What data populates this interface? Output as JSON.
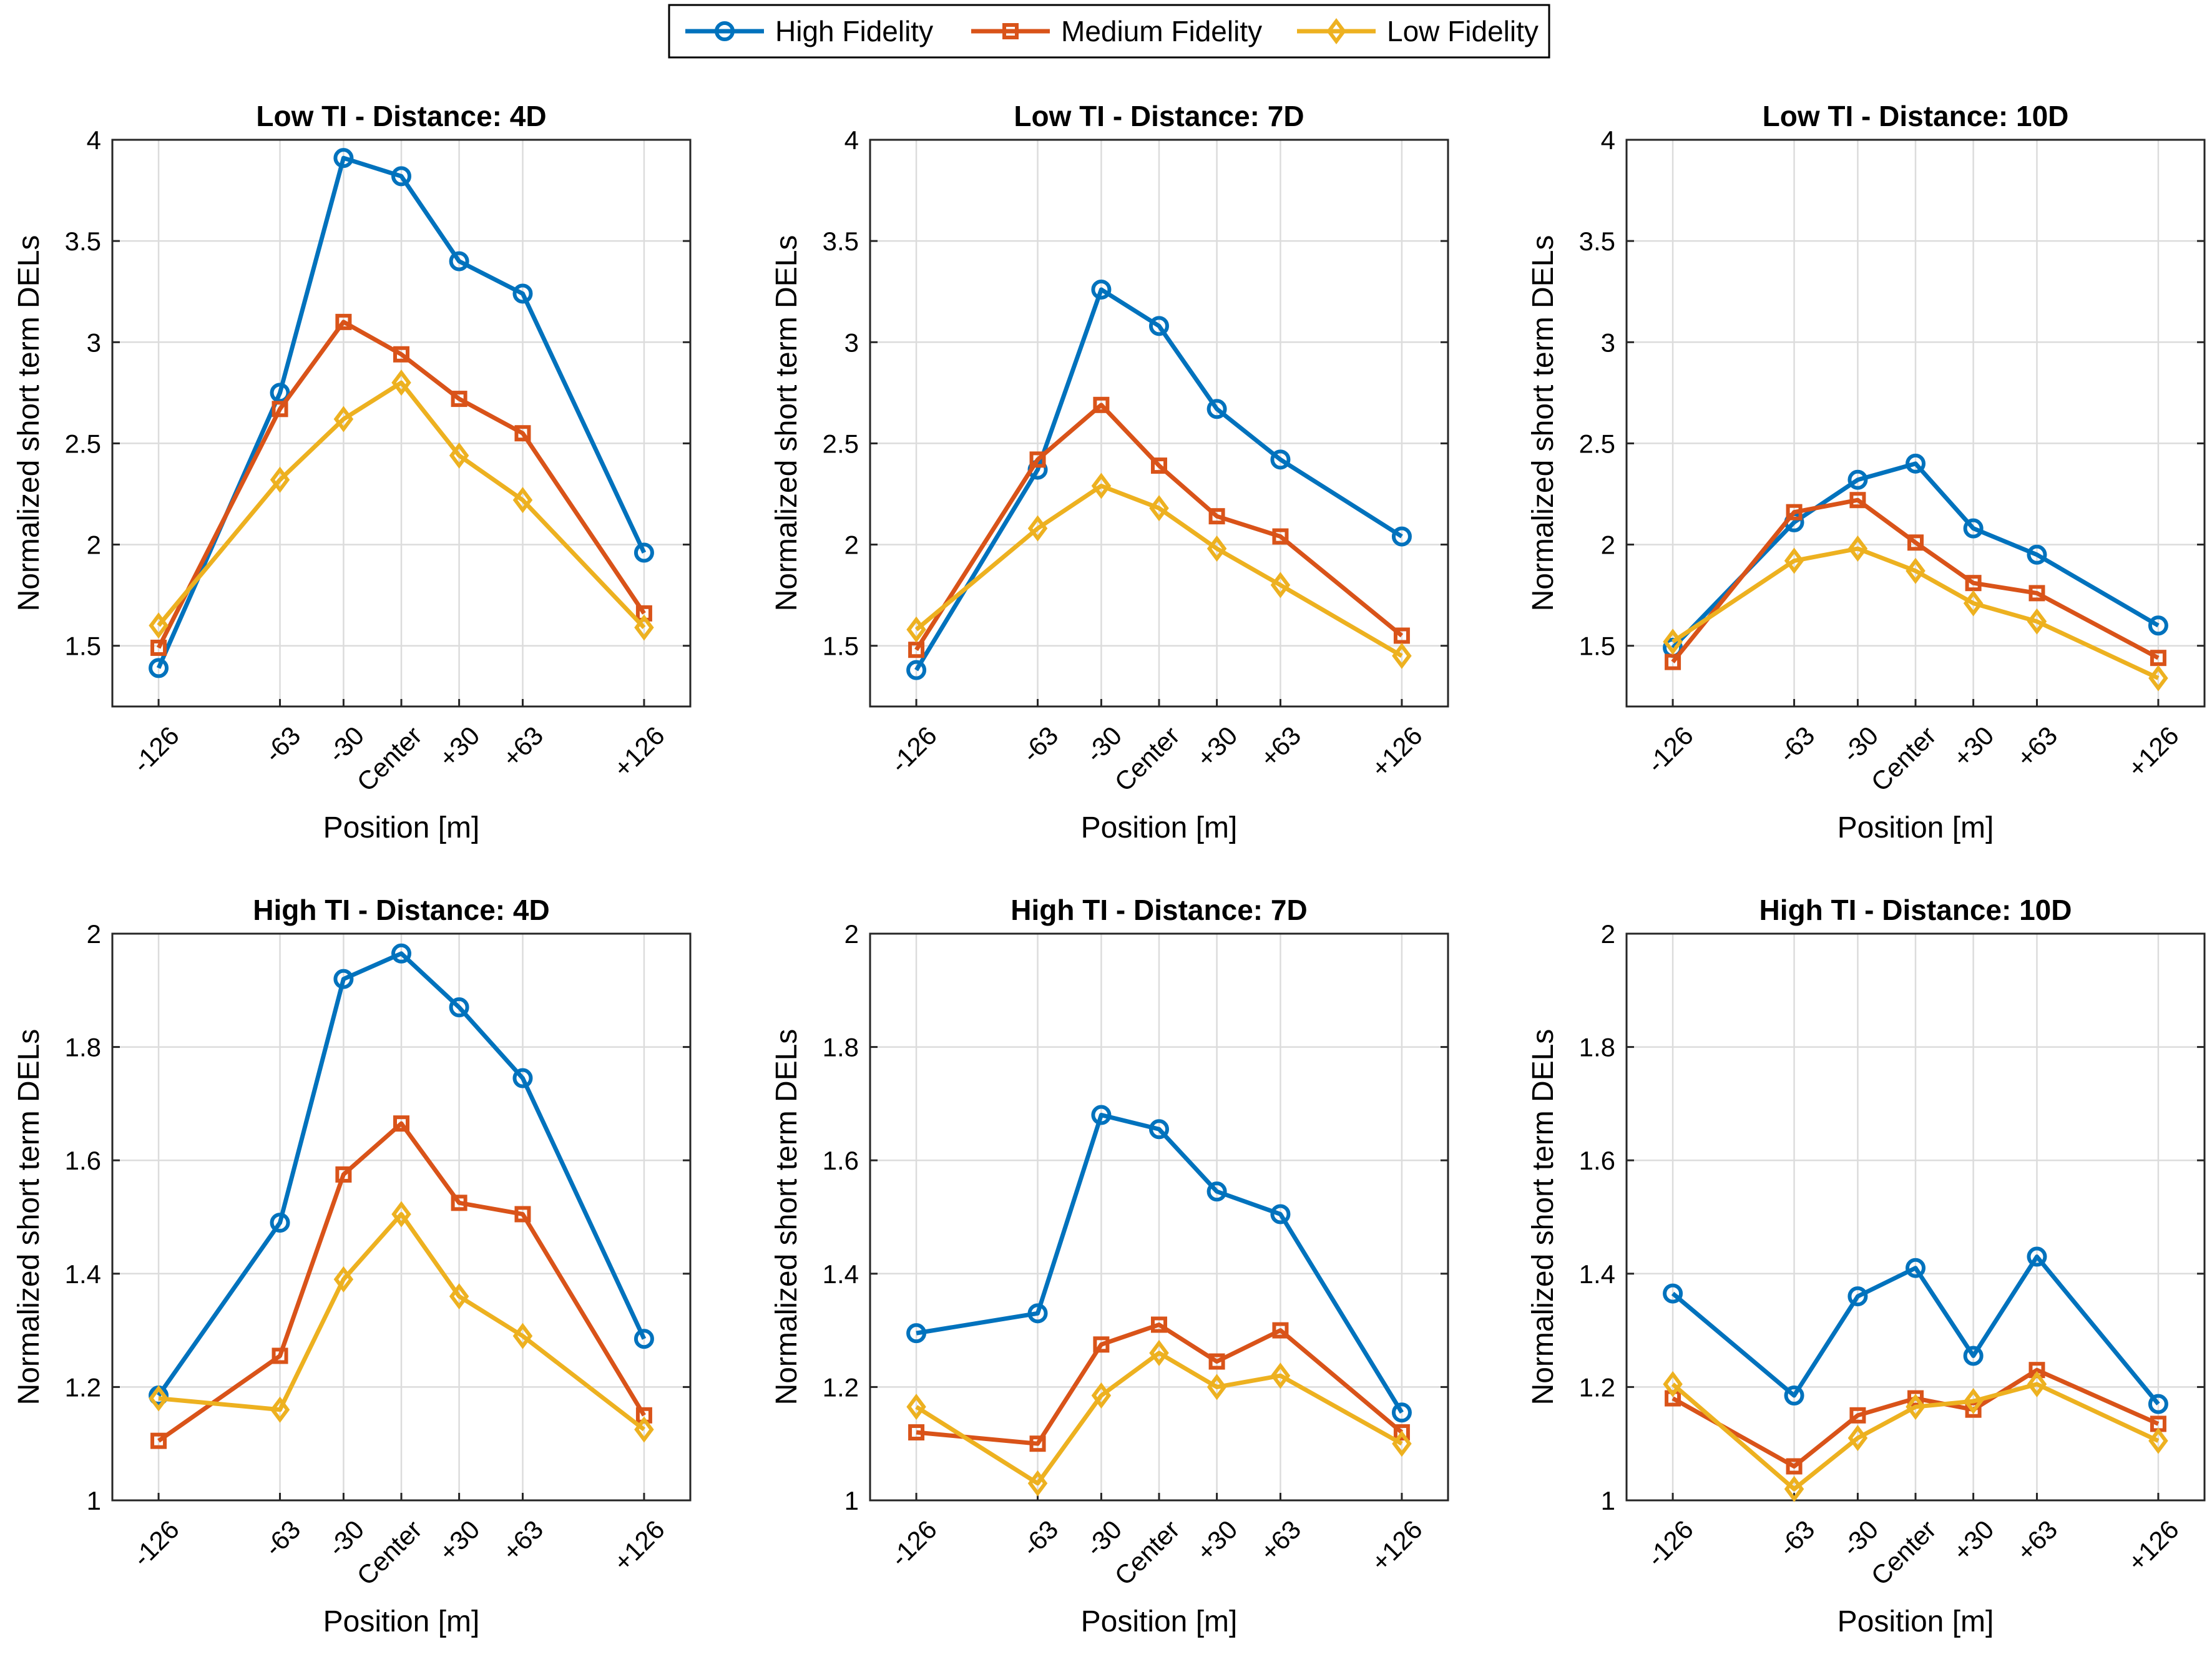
{
  "legend": {
    "entries": [
      {
        "name": "High Fidelity",
        "color": "#0072BD",
        "marker": "circle"
      },
      {
        "name": "Medium Fidelity",
        "color": "#D95319",
        "marker": "square"
      },
      {
        "name": "Low Fidelity",
        "color": "#EDB120",
        "marker": "diamond"
      }
    ]
  },
  "chart_data": [
    {
      "type": "line",
      "title": "Low TI - Distance: 4D",
      "xlabel": "Position [m]",
      "ylabel": "Normalized short term DELs",
      "x": [
        -126,
        -63,
        -30,
        0,
        30,
        63,
        126
      ],
      "categories": [
        "-126",
        "-63",
        "-30",
        "Center",
        "+30",
        "+63",
        "+126"
      ],
      "ylim": [
        1.2,
        4
      ],
      "yticks": [
        "1.5",
        "2",
        "2.5",
        "3",
        "3.5",
        "4"
      ],
      "ytick_values": [
        1.5,
        2,
        2.5,
        3,
        3.5,
        4
      ],
      "grid": true,
      "series": [
        {
          "name": "High Fidelity",
          "values": [
            1.39,
            2.75,
            3.91,
            3.82,
            3.4,
            3.24,
            1.96
          ]
        },
        {
          "name": "Medium Fidelity",
          "values": [
            1.49,
            2.67,
            3.1,
            2.94,
            2.72,
            2.55,
            1.66
          ]
        },
        {
          "name": "Low Fidelity",
          "values": [
            1.6,
            2.32,
            2.62,
            2.8,
            2.44,
            2.22,
            1.59
          ]
        }
      ]
    },
    {
      "type": "line",
      "title": "Low TI - Distance: 7D",
      "xlabel": "Position [m]",
      "ylabel": "Normalized short term DELs",
      "x": [
        -126,
        -63,
        -30,
        0,
        30,
        63,
        126
      ],
      "categories": [
        "-126",
        "-63",
        "-30",
        "Center",
        "+30",
        "+63",
        "+126"
      ],
      "ylim": [
        1.2,
        4
      ],
      "yticks": [
        "1.5",
        "2",
        "2.5",
        "3",
        "3.5",
        "4"
      ],
      "ytick_values": [
        1.5,
        2,
        2.5,
        3,
        3.5,
        4
      ],
      "grid": true,
      "series": [
        {
          "name": "High Fidelity",
          "values": [
            1.38,
            2.37,
            3.26,
            3.08,
            2.67,
            2.42,
            2.04
          ]
        },
        {
          "name": "Medium Fidelity",
          "values": [
            1.48,
            2.42,
            2.69,
            2.39,
            2.14,
            2.04,
            1.55
          ]
        },
        {
          "name": "Low Fidelity",
          "values": [
            1.58,
            2.08,
            2.29,
            2.18,
            1.98,
            1.8,
            1.45
          ]
        }
      ]
    },
    {
      "type": "line",
      "title": "Low TI - Distance: 10D",
      "xlabel": "Position [m]",
      "ylabel": "Normalized short term DELs",
      "x": [
        -126,
        -63,
        -30,
        0,
        30,
        63,
        126
      ],
      "categories": [
        "-126",
        "-63",
        "-30",
        "Center",
        "+30",
        "+63",
        "+126"
      ],
      "ylim": [
        1.2,
        4
      ],
      "yticks": [
        "1.5",
        "2",
        "2.5",
        "3",
        "3.5",
        "4"
      ],
      "ytick_values": [
        1.5,
        2,
        2.5,
        3,
        3.5,
        4
      ],
      "grid": true,
      "series": [
        {
          "name": "High Fidelity",
          "values": [
            1.49,
            2.11,
            2.32,
            2.4,
            2.08,
            1.95,
            1.6
          ]
        },
        {
          "name": "Medium Fidelity",
          "values": [
            1.42,
            2.16,
            2.22,
            2.01,
            1.81,
            1.76,
            1.44
          ]
        },
        {
          "name": "Low Fidelity",
          "values": [
            1.52,
            1.92,
            1.98,
            1.87,
            1.71,
            1.62,
            1.34
          ]
        }
      ]
    },
    {
      "type": "line",
      "title": "High TI - Distance: 4D",
      "xlabel": "Position [m]",
      "ylabel": "Normalized short term DELs",
      "x": [
        -126,
        -63,
        -30,
        0,
        30,
        63,
        126
      ],
      "categories": [
        "-126",
        "-63",
        "-30",
        "Center",
        "+30",
        "+63",
        "+126"
      ],
      "ylim": [
        1,
        2
      ],
      "yticks": [
        "1",
        "1.2",
        "1.4",
        "1.6",
        "1.8",
        "2"
      ],
      "ytick_values": [
        1,
        1.2,
        1.4,
        1.6,
        1.8,
        2
      ],
      "grid": true,
      "series": [
        {
          "name": "High Fidelity",
          "values": [
            1.185,
            1.49,
            1.92,
            1.965,
            1.87,
            1.745,
            1.285
          ]
        },
        {
          "name": "Medium Fidelity",
          "values": [
            1.105,
            1.255,
            1.575,
            1.665,
            1.525,
            1.505,
            1.15
          ]
        },
        {
          "name": "Low Fidelity",
          "values": [
            1.18,
            1.16,
            1.39,
            1.505,
            1.36,
            1.29,
            1.125
          ]
        }
      ]
    },
    {
      "type": "line",
      "title": "High TI - Distance: 7D",
      "xlabel": "Position [m]",
      "ylabel": "Normalized short term DELs",
      "x": [
        -126,
        -63,
        -30,
        0,
        30,
        63,
        126
      ],
      "categories": [
        "-126",
        "-63",
        "-30",
        "Center",
        "+30",
        "+63",
        "+126"
      ],
      "ylim": [
        1,
        2
      ],
      "yticks": [
        "1",
        "1.2",
        "1.4",
        "1.6",
        "1.8",
        "2"
      ],
      "ytick_values": [
        1,
        1.2,
        1.4,
        1.6,
        1.8,
        2
      ],
      "grid": true,
      "series": [
        {
          "name": "High Fidelity",
          "values": [
            1.295,
            1.33,
            1.68,
            1.655,
            1.545,
            1.505,
            1.155
          ]
        },
        {
          "name": "Medium Fidelity",
          "values": [
            1.12,
            1.1,
            1.275,
            1.31,
            1.245,
            1.3,
            1.12
          ]
        },
        {
          "name": "Low Fidelity",
          "values": [
            1.165,
            1.03,
            1.185,
            1.26,
            1.2,
            1.22,
            1.1
          ]
        }
      ]
    },
    {
      "type": "line",
      "title": "High TI - Distance: 10D",
      "xlabel": "Position [m]",
      "ylabel": "Normalized short term DELs",
      "x": [
        -126,
        -63,
        -30,
        0,
        30,
        63,
        126
      ],
      "categories": [
        "-126",
        "-63",
        "-30",
        "Center",
        "+30",
        "+63",
        "+126"
      ],
      "ylim": [
        1,
        2
      ],
      "yticks": [
        "1",
        "1.2",
        "1.4",
        "1.6",
        "1.8",
        "2"
      ],
      "ytick_values": [
        1,
        1.2,
        1.4,
        1.6,
        1.8,
        2
      ],
      "grid": true,
      "series": [
        {
          "name": "High Fidelity",
          "values": [
            1.365,
            1.185,
            1.36,
            1.41,
            1.255,
            1.43,
            1.17
          ]
        },
        {
          "name": "Medium Fidelity",
          "values": [
            1.18,
            1.06,
            1.15,
            1.18,
            1.16,
            1.23,
            1.135
          ]
        },
        {
          "name": "Low Fidelity",
          "values": [
            1.205,
            1.02,
            1.11,
            1.165,
            1.175,
            1.205,
            1.105
          ]
        }
      ]
    }
  ]
}
